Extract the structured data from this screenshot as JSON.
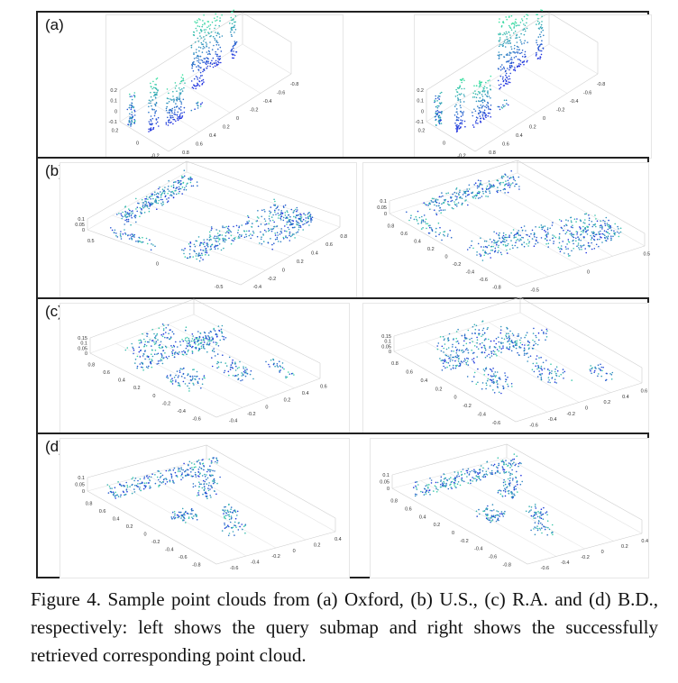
{
  "figure": {
    "panels": [
      {
        "label": "(a)",
        "plots": [
          {
            "z_ticks": [
              "0.2",
              "0.1",
              "0",
              "-0.1"
            ],
            "y_ticks": [
              "0.2",
              "0",
              "-0.2"
            ],
            "x_ticks": [
              "0.8",
              "0.6",
              "0.4",
              "0.2",
              "0",
              "-0.2",
              "-0.4",
              "-0.6",
              "-0.8"
            ]
          },
          {
            "z_ticks": [
              "0.2",
              "0.1",
              "0",
              "-0.1"
            ],
            "y_ticks": [
              "0.2",
              "0",
              "-0.2"
            ],
            "x_ticks": [
              "0.8",
              "0.6",
              "0.4",
              "0.2",
              "0",
              "-0.2",
              "-0.4",
              "-0.6",
              "-0.8"
            ]
          }
        ]
      },
      {
        "label": "(b)",
        "plots": [
          {
            "z_ticks": [
              "0.1",
              "0.05",
              "0"
            ],
            "y_ticks": [
              "0.5",
              "0",
              "-0.5"
            ],
            "x_ticks": [
              "-0.4",
              "-0.2",
              "0",
              "0.2",
              "0.4",
              "0.6",
              "0.8"
            ]
          },
          {
            "z_ticks": [
              "0.1",
              "0.05",
              "0"
            ],
            "y_ticks": [
              "0.8",
              "0.6",
              "0.4",
              "0.2",
              "0",
              "-0.2",
              "-0.4",
              "-0.6",
              "-0.8"
            ],
            "x_ticks": [
              "-0.5",
              "0",
              "0.5"
            ]
          }
        ]
      },
      {
        "label": "(c)",
        "plots": [
          {
            "z_ticks": [
              "0.15",
              "0.1",
              "0.05",
              "0"
            ],
            "y_ticks": [
              "0.8",
              "0.6",
              "0.4",
              "0.2",
              "0",
              "-0.2",
              "-0.4",
              "-0.6"
            ],
            "x_ticks": [
              "-0.4",
              "-0.2",
              "0",
              "0.2",
              "0.4",
              "0.6"
            ]
          },
          {
            "z_ticks": [
              "0.15",
              "0.1",
              "0.05",
              "0"
            ],
            "y_ticks": [
              "0.8",
              "0.6",
              "0.4",
              "0.2",
              "0",
              "-0.2",
              "-0.4",
              "-0.6"
            ],
            "x_ticks": [
              "-0.6",
              "-0.4",
              "-0.2",
              "0",
              "0.2",
              "0.4",
              "0.6"
            ]
          }
        ]
      },
      {
        "label": "(d)",
        "plots": [
          {
            "z_ticks": [
              "0.1",
              "0.05",
              "0"
            ],
            "y_ticks": [
              "0.8",
              "0.6",
              "0.4",
              "0.2",
              "0",
              "-0.2",
              "-0.4",
              "-0.6",
              "-0.8"
            ],
            "x_ticks": [
              "-0.6",
              "-0.4",
              "-0.2",
              "0",
              "0.2",
              "0.4"
            ]
          },
          {
            "z_ticks": [
              "0.1",
              "0.05",
              "0"
            ],
            "y_ticks": [
              "0.8",
              "0.6",
              "0.4",
              "0.2",
              "0",
              "-0.2",
              "-0.4",
              "-0.6",
              "-0.8"
            ],
            "x_ticks": [
              "-0.6",
              "-0.4",
              "-0.2",
              "0",
              "0.2",
              "0.4"
            ]
          }
        ]
      }
    ],
    "caption": "Figure 4. Sample point clouds from (a) Oxford, (b) U.S., (c) R.A. and (d) B.D., respectively: left shows the query submap and right shows the successfully retrieved corresponding point cloud."
  },
  "colors": {
    "point_low": "#1f2fe0",
    "point_high": "#3fe6a0",
    "axis": "#cfcfcf",
    "tick_text": "#333333"
  }
}
